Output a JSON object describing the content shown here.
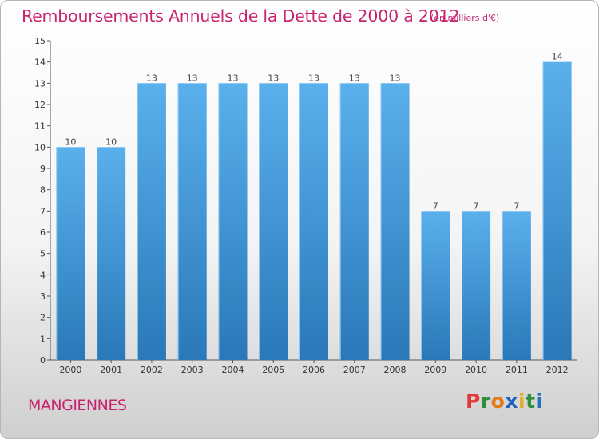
{
  "header": {
    "title": "Remboursements Annuels de la Dette de 2000 à 2012",
    "unit": "(en milliers d'€)"
  },
  "footer": {
    "commune": "MANGIENNES",
    "logo_text": "Proxiti"
  },
  "colors": {
    "title": "#c8246e",
    "bar_light": "#5ab0ec",
    "bar_dark": "#2a78b8",
    "logo_letters": [
      "#e03a3a",
      "#2f8f3a",
      "#e07a1a",
      "#2060c0",
      "#e0b020",
      "#2f8f3a",
      "#2070c0"
    ]
  },
  "chart_data": {
    "type": "bar",
    "categories": [
      "2000",
      "2001",
      "2002",
      "2003",
      "2004",
      "2005",
      "2006",
      "2007",
      "2008",
      "2009",
      "2010",
      "2011",
      "2012"
    ],
    "values": [
      10,
      10,
      13,
      13,
      13,
      13,
      13,
      13,
      13,
      7,
      7,
      7,
      14
    ],
    "data_labels": [
      "10",
      "10",
      "13",
      "13",
      "13",
      "13",
      "13",
      "13",
      "13",
      "7",
      "7",
      "7",
      "14"
    ],
    "y_ticks": [
      "0",
      "1",
      "2",
      "3",
      "4",
      "5",
      "6",
      "7",
      "8",
      "9",
      "10",
      "11",
      "12",
      "13",
      "14",
      "15"
    ],
    "ylim": [
      0,
      15
    ],
    "grid": false,
    "xlabel": "",
    "ylabel": ""
  }
}
